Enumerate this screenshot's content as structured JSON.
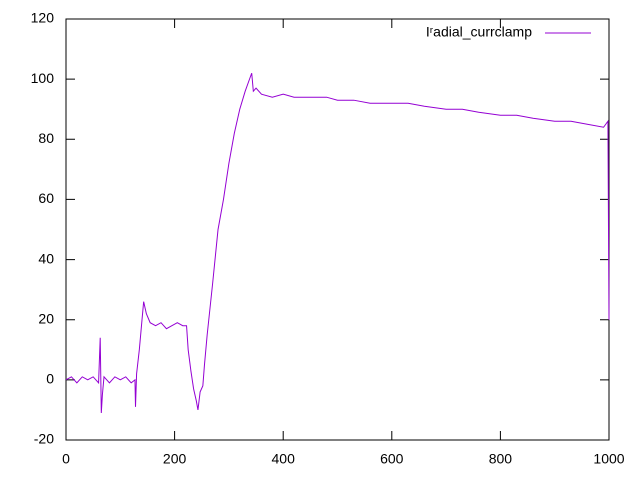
{
  "chart_data": {
    "type": "line",
    "x": [
      0,
      10,
      20,
      30,
      40,
      50,
      60,
      63,
      65,
      67,
      70,
      80,
      90,
      100,
      110,
      120,
      127,
      128,
      130,
      135,
      140,
      143,
      148,
      155,
      165,
      175,
      185,
      195,
      205,
      215,
      222,
      225,
      230,
      235,
      240,
      243,
      247,
      252,
      255,
      260,
      270,
      280,
      290,
      300,
      310,
      320,
      330,
      338,
      342,
      345,
      350,
      360,
      380,
      400,
      420,
      450,
      480,
      500,
      530,
      560,
      600,
      630,
      660,
      700,
      730,
      760,
      800,
      830,
      860,
      900,
      930,
      960,
      990,
      998,
      1000
    ],
    "series": [
      {
        "name": "Iʳadial_currclamp",
        "color": "#9400d3",
        "values": [
          0,
          1,
          -1,
          1,
          0,
          1,
          -1,
          14,
          -11,
          -5,
          1,
          -1,
          1,
          0,
          1,
          -1,
          0,
          -9,
          2,
          10,
          20,
          26,
          22,
          19,
          18,
          19,
          17,
          18,
          19,
          18,
          18,
          10,
          3,
          -3,
          -7,
          -10,
          -4,
          -2,
          5,
          15,
          32,
          50,
          60,
          72,
          82,
          90,
          96,
          100,
          102,
          96,
          97,
          95,
          94,
          95,
          94,
          94,
          94,
          93,
          93,
          92,
          92,
          92,
          91,
          90,
          90,
          89,
          88,
          88,
          87,
          86,
          86,
          85,
          84,
          86,
          20
        ]
      }
    ],
    "xlim": [
      0,
      1000
    ],
    "ylim": [
      -20,
      120
    ],
    "xticks": [
      0,
      200,
      400,
      600,
      800,
      1000
    ],
    "yticks": [
      -20,
      0,
      20,
      40,
      60,
      80,
      100,
      120
    ],
    "legend": "top-right"
  }
}
